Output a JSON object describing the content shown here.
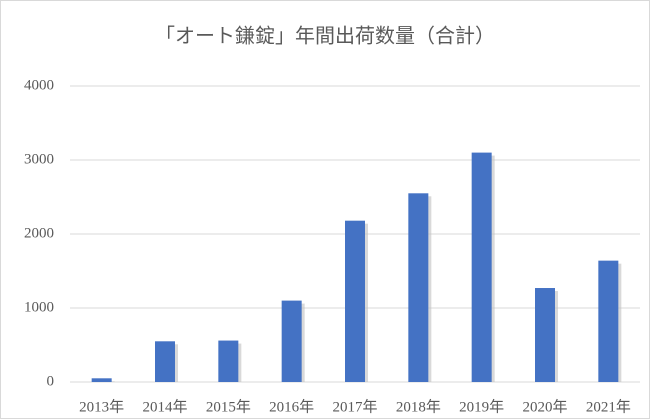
{
  "chart_data": {
    "type": "bar",
    "title": "「オート鎌錠」年間出荷数量（合計）",
    "categories": [
      "2013年",
      "2014年",
      "2015年",
      "2016年",
      "2017年",
      "2018年",
      "2019年",
      "2020年",
      "2021年"
    ],
    "values": [
      50,
      550,
      560,
      1100,
      2180,
      2550,
      3100,
      1270,
      1640
    ],
    "color": "#4472c4",
    "ylim": [
      0,
      4000
    ],
    "yticks": [
      0,
      1000,
      2000,
      3000,
      4000
    ],
    "grid": true
  }
}
